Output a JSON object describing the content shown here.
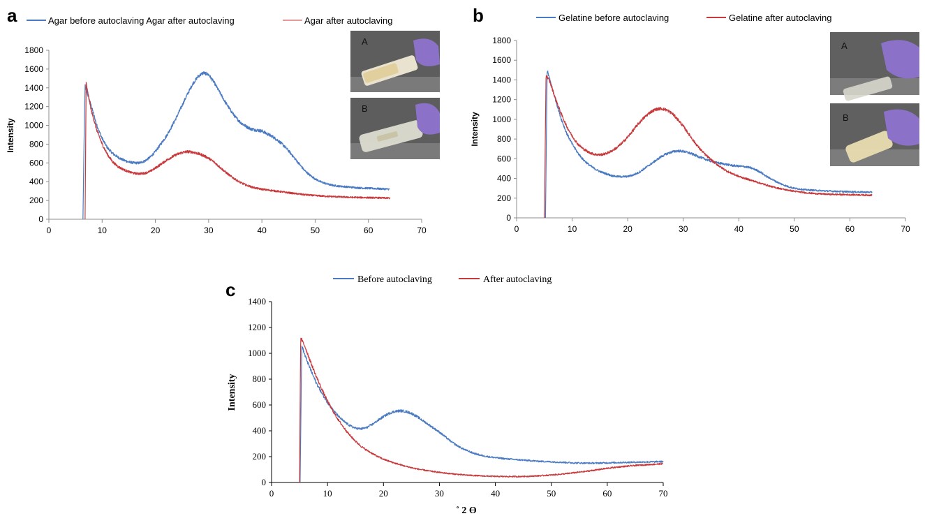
{
  "colors": {
    "blue": "#4a7ac2",
    "red": "#c8393c"
  },
  "chart_data": [
    {
      "type": "line",
      "panel_label": "a",
      "title": "",
      "xlabel": "",
      "ylabel": "Intensity",
      "xlim": [
        0,
        70
      ],
      "ylim": [
        0,
        1800
      ],
      "xticks": [
        0,
        10,
        20,
        30,
        40,
        50,
        60,
        70
      ],
      "yticks": [
        0,
        200,
        400,
        600,
        800,
        1000,
        1200,
        1400,
        1600,
        1800
      ],
      "legend_position": "top",
      "series": [
        {
          "name": "Agar before autoclaving Agar after autoclaving",
          "color": "#4a7ac2",
          "x": [
            6.4,
            6.6,
            6.8,
            7,
            8,
            9,
            10,
            11,
            12,
            13,
            14,
            15,
            16,
            17,
            18,
            19,
            20,
            21,
            22,
            23,
            24,
            25,
            26,
            27,
            28,
            29,
            30,
            31,
            32,
            33,
            34,
            35,
            36,
            37,
            38,
            39,
            40,
            41,
            42,
            43,
            44,
            45,
            46,
            47,
            48,
            49,
            50,
            51,
            52,
            53,
            54,
            56,
            58,
            60,
            62,
            64
          ],
          "y": [
            0,
            800,
            1420,
            1380,
            1200,
            1000,
            860,
            760,
            700,
            660,
            630,
            610,
            600,
            600,
            620,
            660,
            720,
            800,
            880,
            980,
            1090,
            1210,
            1330,
            1440,
            1520,
            1560,
            1540,
            1460,
            1360,
            1260,
            1170,
            1090,
            1030,
            990,
            960,
            950,
            940,
            910,
            880,
            840,
            790,
            730,
            660,
            590,
            520,
            470,
            430,
            400,
            380,
            365,
            355,
            345,
            335,
            330,
            325,
            320
          ]
        },
        {
          "name": "Agar after autoclaving",
          "color": "#c8393c",
          "x": [
            6.8,
            7,
            7.2,
            8,
            9,
            10,
            11,
            12,
            13,
            14,
            15,
            16,
            17,
            18,
            19,
            20,
            21,
            22,
            23,
            24,
            25,
            26,
            27,
            28,
            29,
            30,
            31,
            32,
            33,
            34,
            35,
            36,
            37,
            38,
            39,
            40,
            42,
            44,
            46,
            48,
            50,
            52,
            54,
            56,
            58,
            60,
            62,
            64
          ],
          "y": [
            0,
            1460,
            1380,
            1150,
            950,
            800,
            690,
            610,
            560,
            530,
            505,
            490,
            485,
            490,
            510,
            545,
            585,
            625,
            660,
            690,
            710,
            720,
            715,
            700,
            680,
            650,
            610,
            560,
            510,
            465,
            425,
            390,
            365,
            345,
            330,
            320,
            305,
            290,
            275,
            262,
            252,
            245,
            240,
            235,
            232,
            230,
            228,
            225
          ]
        }
      ]
    },
    {
      "type": "line",
      "panel_label": "b",
      "title": "",
      "xlabel": "",
      "ylabel": "Intensity",
      "xlim": [
        0,
        70
      ],
      "ylim": [
        0,
        1800
      ],
      "xticks": [
        0,
        10,
        20,
        30,
        40,
        50,
        60,
        70
      ],
      "yticks": [
        0,
        200,
        400,
        600,
        800,
        1000,
        1200,
        1400,
        1600,
        1800
      ],
      "legend_position": "top",
      "series": [
        {
          "name": "Gelatine before autoclaving",
          "color": "#4a7ac2",
          "x": [
            5.2,
            5.5,
            6,
            7,
            8,
            9,
            10,
            11,
            12,
            13,
            14,
            15,
            16,
            17,
            18,
            19,
            20,
            21,
            22,
            23,
            24,
            25,
            26,
            27,
            28,
            29,
            30,
            31,
            32,
            33,
            34,
            35,
            36,
            37,
            38,
            39,
            40,
            41,
            42,
            43,
            44,
            45,
            46,
            47,
            48,
            49,
            50,
            52,
            54,
            56,
            58,
            60,
            62,
            64
          ],
          "y": [
            0,
            1500,
            1400,
            1200,
            1010,
            860,
            750,
            660,
            590,
            540,
            500,
            470,
            450,
            430,
            420,
            418,
            420,
            435,
            460,
            500,
            540,
            580,
            620,
            650,
            670,
            680,
            675,
            660,
            640,
            615,
            595,
            575,
            560,
            550,
            540,
            530,
            525,
            520,
            510,
            490,
            460,
            420,
            390,
            360,
            335,
            315,
            300,
            285,
            278,
            272,
            268,
            265,
            262,
            260
          ]
        },
        {
          "name": "Gelatine after autoclaving",
          "color": "#c8393c",
          "x": [
            5,
            5.3,
            6,
            7,
            8,
            9,
            10,
            11,
            12,
            13,
            14,
            15,
            16,
            17,
            18,
            19,
            20,
            21,
            22,
            23,
            24,
            25,
            26,
            27,
            28,
            29,
            30,
            31,
            32,
            33,
            34,
            35,
            36,
            37,
            38,
            39,
            40,
            42,
            44,
            46,
            48,
            50,
            52,
            54,
            56,
            58,
            60,
            62,
            64
          ],
          "y": [
            0,
            1450,
            1380,
            1210,
            1060,
            930,
            830,
            750,
            700,
            665,
            645,
            640,
            650,
            675,
            710,
            760,
            820,
            890,
            960,
            1020,
            1070,
            1100,
            1110,
            1095,
            1060,
            1000,
            930,
            850,
            770,
            700,
            640,
            590,
            545,
            505,
            470,
            445,
            420,
            385,
            350,
            315,
            290,
            270,
            255,
            245,
            240,
            237,
            235,
            233,
            230
          ]
        }
      ]
    },
    {
      "type": "line",
      "panel_label": "c",
      "title": "",
      "xlabel": "˚ 2 Ө",
      "ylabel": "Intensity",
      "xlim": [
        0,
        70
      ],
      "ylim": [
        0,
        1400
      ],
      "xticks": [
        0,
        10,
        20,
        30,
        40,
        50,
        60,
        70
      ],
      "yticks": [
        0,
        200,
        400,
        600,
        800,
        1000,
        1200,
        1400
      ],
      "legend_position": "top",
      "series": [
        {
          "name": "Before autoclaving",
          "color": "#4a7ac2",
          "x": [
            5.1,
            5.4,
            6,
            7,
            8,
            9,
            10,
            11,
            12,
            13,
            14,
            15,
            16,
            17,
            18,
            19,
            20,
            21,
            22,
            23,
            24,
            25,
            26,
            27,
            28,
            29,
            30,
            31,
            32,
            33,
            34,
            35,
            36,
            37,
            38,
            39,
            40,
            42,
            44,
            46,
            48,
            50,
            52,
            54,
            56,
            58,
            60,
            62,
            64,
            66,
            68,
            70
          ],
          "y": [
            0,
            1060,
            980,
            870,
            770,
            690,
            620,
            560,
            510,
            470,
            440,
            420,
            415,
            425,
            450,
            480,
            510,
            535,
            550,
            555,
            550,
            535,
            510,
            480,
            450,
            420,
            390,
            355,
            320,
            290,
            265,
            245,
            228,
            215,
            205,
            198,
            192,
            183,
            176,
            170,
            164,
            160,
            156,
            152,
            150,
            150,
            152,
            154,
            156,
            158,
            160,
            162
          ]
        },
        {
          "name": "After autoclaving",
          "color": "#c8393c",
          "x": [
            5,
            5.2,
            6,
            7,
            8,
            9,
            10,
            11,
            12,
            13,
            14,
            15,
            16,
            17,
            18,
            19,
            20,
            22,
            24,
            26,
            28,
            30,
            32,
            34,
            36,
            38,
            40,
            42,
            44,
            46,
            48,
            50,
            52,
            54,
            56,
            58,
            60,
            62,
            64,
            66,
            68,
            70
          ],
          "y": [
            0,
            1120,
            1050,
            930,
            820,
            720,
            630,
            550,
            480,
            420,
            365,
            320,
            280,
            250,
            225,
            200,
            180,
            150,
            125,
            105,
            90,
            78,
            68,
            60,
            54,
            50,
            47,
            46,
            46,
            48,
            52,
            58,
            65,
            75,
            85,
            97,
            110,
            120,
            128,
            135,
            140,
            145
          ]
        }
      ]
    }
  ],
  "insets": {
    "a_top_label": "A",
    "a_bottom_label": "B",
    "b_top_label": "A",
    "b_bottom_label": "B"
  }
}
